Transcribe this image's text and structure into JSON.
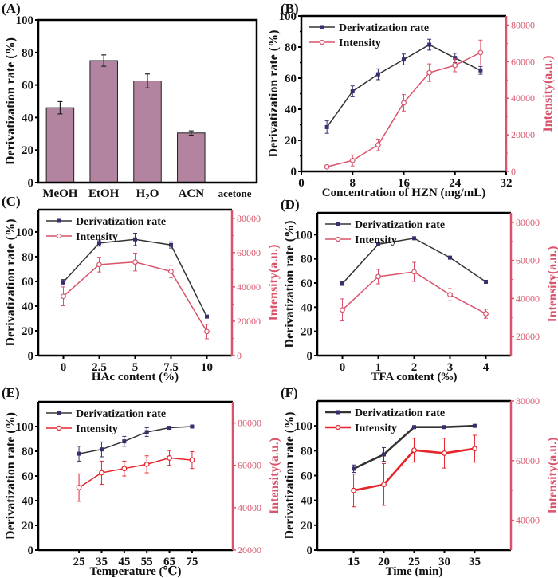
{
  "colors": {
    "bar_fill": "#b3849f",
    "rate_line": "#333333",
    "rate_marker": "#3a2e6e",
    "intensity_line_bcd": "#d9536a",
    "intensity_line_ef": "#e8242b",
    "right_axis": "#d9536a"
  },
  "chart_data": [
    {
      "id": "A",
      "panel_label": "(A)",
      "type": "bar",
      "title": "",
      "categories": [
        "MeOH",
        "EtOH",
        "H2O",
        "ACN",
        "acetone"
      ],
      "values": [
        46,
        75,
        62.5,
        30.5,
        0
      ],
      "errors": [
        3.8,
        3.5,
        4.3,
        1.3,
        0
      ],
      "xlabel": "",
      "ylabel": "Derivatization rate (%)",
      "ylim": [
        0,
        100
      ],
      "yticks": [
        0,
        20,
        40,
        60,
        80,
        100
      ]
    },
    {
      "id": "B",
      "panel_label": "(B)",
      "type": "line",
      "x": [
        4,
        8,
        12,
        16,
        20,
        24,
        28
      ],
      "xlabel": "Concentration of HZN (mg/mL)",
      "xlim": [
        0,
        32
      ],
      "xticks": [
        0,
        8,
        16,
        24,
        32
      ],
      "xtick_labels": [
        "0",
        "8",
        "16",
        "24",
        "32"
      ],
      "ylabel": "Derivatization rate (%)",
      "ylim": [
        0,
        100
      ],
      "yticks": [
        0,
        20,
        40,
        60,
        80,
        100
      ],
      "y2label": "Intensity(a.u.)",
      "y2lim": [
        0,
        85000
      ],
      "y2ticks": [
        0,
        20000,
        40000,
        60000,
        80000
      ],
      "legend": "top-left",
      "series": [
        {
          "name": "Derivatization rate",
          "axis": "left",
          "values": [
            28.5,
            51.5,
            62.5,
            72,
            81.5,
            73,
            65
          ],
          "errors": [
            4,
            3.5,
            3.5,
            3.5,
            3.5,
            3,
            2.5
          ]
        },
        {
          "name": "Intensity",
          "axis": "right",
          "values": [
            2500,
            6000,
            14500,
            37500,
            54000,
            58000,
            65000
          ],
          "errors": [
            800,
            3000,
            3200,
            4500,
            4800,
            3500,
            6800
          ]
        }
      ]
    },
    {
      "id": "C",
      "panel_label": "(C)",
      "type": "line",
      "x": [
        0,
        2.5,
        5,
        7.5,
        10
      ],
      "xlabel": "HAc content (%)",
      "xlim": [
        -1.75,
        11.75
      ],
      "xticks": [
        0,
        2.5,
        5,
        7.5,
        10
      ],
      "xtick_labels": [
        "0",
        "2.5",
        "5",
        "7.5",
        "10"
      ],
      "ylabel": "Derivatization rate (%)",
      "ylim": [
        0,
        118
      ],
      "yticks": [
        0,
        20,
        40,
        60,
        80,
        100
      ],
      "y2label": "Intensity(a.u.)",
      "y2lim": [
        0,
        85000
      ],
      "y2ticks": [
        0,
        20000,
        40000,
        60000,
        80000
      ],
      "legend": "top-left",
      "series": [
        {
          "name": "Derivatization rate",
          "axis": "left",
          "values": [
            59.5,
            91,
            94,
            89.5,
            31.5
          ],
          "errors": [
            2,
            2.5,
            5,
            2.5,
            1
          ]
        },
        {
          "name": "Intensity",
          "axis": "right",
          "values": [
            34500,
            53000,
            54500,
            49000,
            14000
          ],
          "errors": [
            5500,
            4300,
            5200,
            3600,
            4200
          ]
        }
      ]
    },
    {
      "id": "D",
      "panel_label": "(D)",
      "type": "line",
      "x": [
        0,
        1,
        2,
        3,
        4
      ],
      "xlabel": "TFA content (‰)",
      "xlim": [
        -0.7,
        4.7
      ],
      "xticks": [
        0,
        1,
        2,
        3,
        4
      ],
      "xtick_labels": [
        "0",
        "1",
        "2",
        "3",
        "4"
      ],
      "ylabel": "Derivatization rate (%)",
      "ylim": [
        0,
        118
      ],
      "yticks": [
        0,
        20,
        40,
        60,
        80,
        100
      ],
      "y2label": "Intensity(a.u.)",
      "y2lim": [
        10000,
        85000
      ],
      "y2ticks": [
        20000,
        40000,
        60000,
        80000
      ],
      "legend": "top-left",
      "series": [
        {
          "name": "Derivatization rate",
          "axis": "left",
          "values": [
            59.5,
            92,
            97,
            81,
            61
          ],
          "errors": [
            1.5,
            0.5,
            0.5,
            0.5,
            0.5
          ]
        },
        {
          "name": "Intensity",
          "axis": "right",
          "values": [
            34000,
            51500,
            54000,
            42000,
            32000
          ],
          "errors": [
            5800,
            3800,
            5000,
            3200,
            2400
          ]
        }
      ]
    },
    {
      "id": "E",
      "panel_label": "(E)",
      "type": "line",
      "x": [
        25,
        35,
        45,
        55,
        65,
        75
      ],
      "xlabel": "Temperature (℃)",
      "xlim": [
        7,
        93
      ],
      "xticks": [
        25,
        35,
        45,
        55,
        65,
        75
      ],
      "xtick_labels": [
        "25",
        "35",
        "45",
        "55",
        "65",
        "75"
      ],
      "ylabel": "Derivatization rate (%)",
      "ylim": [
        0,
        120
      ],
      "yticks": [
        0,
        20,
        40,
        60,
        80,
        100
      ],
      "y2label": "Intensity(a.u.)",
      "y2lim": [
        20000,
        90000
      ],
      "y2ticks": [
        20000,
        40000,
        60000,
        80000
      ],
      "legend": "top-left",
      "series": [
        {
          "name": "Derivatization rate",
          "axis": "left",
          "values": [
            78,
            81.5,
            88,
            95.5,
            99,
            100
          ],
          "errors": [
            6,
            6,
            4,
            3.5,
            1,
            0.5
          ]
        },
        {
          "name": "Intensity",
          "axis": "right",
          "values": [
            49500,
            56500,
            58500,
            60500,
            63500,
            62500
          ],
          "errors": [
            6500,
            5500,
            3500,
            4000,
            3500,
            4000
          ]
        }
      ]
    },
    {
      "id": "F",
      "panel_label": "(F)",
      "type": "line",
      "x": [
        15,
        20,
        25,
        30,
        35
      ],
      "xlabel": "Time (min)",
      "xlim": [
        9,
        41
      ],
      "xticks": [
        15,
        20,
        25,
        30,
        35
      ],
      "xtick_labels": [
        "15",
        "20",
        "25",
        "30",
        "35"
      ],
      "ylabel": "Derivatization rate (%)",
      "ylim": [
        0,
        120
      ],
      "yticks": [
        0,
        20,
        40,
        60,
        80,
        100
      ],
      "y2label": "Intensity(a.u.)",
      "y2lim": [
        30000,
        80000
      ],
      "y2ticks": [
        40000,
        60000,
        80000
      ],
      "legend": "top-left",
      "series": [
        {
          "name": "Derivatization rate",
          "axis": "left",
          "values": [
            65.5,
            77,
            99,
            99,
            100
          ],
          "errors": [
            3,
            5.5,
            1,
            1,
            0.5
          ]
        },
        {
          "name": "Intensity",
          "axis": "right",
          "values": [
            50000,
            52000,
            63500,
            62500,
            64000
          ],
          "errors": [
            5500,
            7000,
            4000,
            5000,
            4500
          ]
        }
      ]
    }
  ]
}
